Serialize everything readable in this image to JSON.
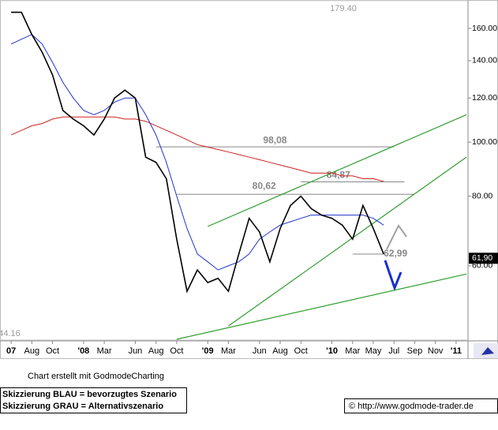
{
  "chart_data": {
    "type": "line",
    "log_y": true,
    "x": [
      "2007-06",
      "2007-07",
      "2007-08",
      "2007-09",
      "2007-10",
      "2007-11",
      "2007-12",
      "2008-01",
      "2008-02",
      "2008-03",
      "2008-04",
      "2008-05",
      "2008-06",
      "2008-07",
      "2008-08",
      "2008-09",
      "2008-10",
      "2008-11",
      "2008-12",
      "2009-01",
      "2009-02",
      "2009-03",
      "2009-04",
      "2009-05",
      "2009-06",
      "2009-07",
      "2009-08",
      "2009-09",
      "2009-10",
      "2009-11",
      "2009-12",
      "2010-01",
      "2010-02",
      "2010-03",
      "2010-04",
      "2010-05",
      "2010-06"
    ],
    "series": [
      {
        "color": "#000000",
        "values": [
          171,
          171,
          156,
          145,
          132,
          114,
          110,
          107,
          103,
          110,
          120,
          124,
          120,
          94,
          92,
          86,
          67,
          54,
          59,
          56,
          57,
          54,
          63,
          73,
          69,
          61,
          70,
          77,
          80,
          76,
          74,
          73,
          71,
          67,
          77,
          70,
          63
        ]
      },
      {
        "color": "#2233cc",
        "values": [
          150,
          153,
          156,
          150,
          139,
          128,
          120,
          114,
          112,
          114,
          118,
          120,
          120,
          112,
          103,
          92,
          80,
          70,
          63,
          61,
          59,
          60,
          61,
          63,
          67,
          69,
          71,
          72,
          73,
          74,
          74,
          74,
          74,
          74,
          74,
          73,
          71
        ]
      },
      {
        "color": "#cc2222",
        "values": [
          103,
          105,
          107,
          108,
          110,
          111,
          111,
          111,
          111,
          111,
          111,
          110,
          110,
          109,
          107,
          105,
          103,
          101,
          99,
          98,
          97,
          96,
          95,
          94,
          93,
          92,
          91,
          90,
          89,
          88,
          88,
          88,
          87,
          87,
          86,
          86,
          85
        ]
      }
    ],
    "xlim": [
      "2007-05",
      "2011-02"
    ],
    "xticks": [
      {
        "value": "2007-06",
        "label": "07"
      },
      {
        "value": "2007-08",
        "label": "Aug"
      },
      {
        "value": "2007-10",
        "label": "Oct"
      },
      {
        "value": "2008-01",
        "label": "'08"
      },
      {
        "value": "2008-03",
        "label": "Mar"
      },
      {
        "value": "2008-06",
        "label": "Jun"
      },
      {
        "value": "2008-08",
        "label": "Aug"
      },
      {
        "value": "2008-10",
        "label": "Oct"
      },
      {
        "value": "2009-01",
        "label": "'09"
      },
      {
        "value": "2009-03",
        "label": "Mar"
      },
      {
        "value": "2009-06",
        "label": "Jun"
      },
      {
        "value": "2009-08",
        "label": "Aug"
      },
      {
        "value": "2009-10",
        "label": "Oct"
      },
      {
        "value": "2010-01",
        "label": "'10"
      },
      {
        "value": "2010-03",
        "label": "Mar"
      },
      {
        "value": "2010-05",
        "label": "May"
      },
      {
        "value": "2010-07",
        "label": "Jul"
      },
      {
        "value": "2010-09",
        "label": "Sep"
      },
      {
        "value": "2010-11",
        "label": "Nov"
      },
      {
        "value": "2011-01",
        "label": "'11"
      }
    ],
    "ylim": [
      44.3,
      179.9
    ],
    "yticks": [
      {
        "value": 60,
        "label": "60.00"
      },
      {
        "value": 80,
        "label": "80.00"
      },
      {
        "value": 100,
        "label": "100.00"
      },
      {
        "value": 120,
        "label": "120.00"
      },
      {
        "value": 140,
        "label": "140.00"
      },
      {
        "value": 160,
        "label": "160.00"
      }
    ],
    "levels": [
      {
        "value": 179.4,
        "label": "179.40"
      },
      {
        "value": 44.16,
        "label": "44.16"
      },
      {
        "value": 98.08,
        "label": "98,08",
        "from": "2008-08",
        "to": "2010-07"
      },
      {
        "value": 84.87,
        "label": "84,87",
        "from": "2009-10",
        "to": "2010-08"
      },
      {
        "value": 80.62,
        "label": "80,62",
        "from": "2008-10",
        "to": "2010-09"
      },
      {
        "value": 62.99,
        "label": "62,99",
        "from": "2010-03",
        "to": "2010-06"
      }
    ],
    "trend_lines": [
      {
        "color": "#2e9e2e",
        "start": [
          "2009-01",
          70.6
        ],
        "end": [
          "2011-02",
          112
        ]
      },
      {
        "color": "#2e9e2e",
        "start": [
          "2009-03",
          46.8
        ],
        "end": [
          "2011-02",
          94
        ]
      },
      {
        "color": "#2e9e2e",
        "start": [
          "2008-10",
          44.3
        ],
        "end": [
          "2011-02",
          58
        ]
      }
    ],
    "last_price": {
      "value": 61.9,
      "label": "61,90"
    }
  },
  "footer": {
    "credit": "Chart erstellt mit GodmodeCharting",
    "legend": [
      "Skizzierung BLAU = bevorzugtes Szenario",
      "Skizzierung GRAU = Alternativszenario"
    ],
    "copyright": "© http://www.godmode-trader.de"
  }
}
